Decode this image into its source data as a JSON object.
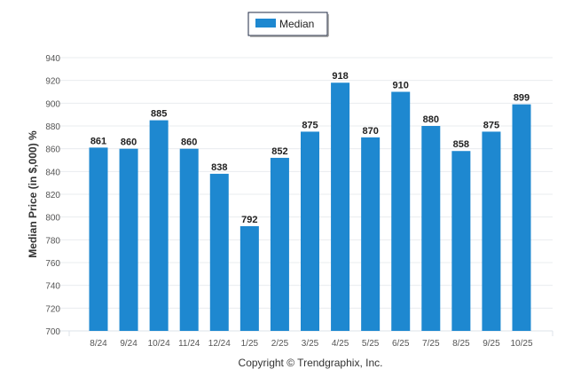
{
  "chart_data": {
    "type": "bar",
    "title": "",
    "xlabel": "",
    "ylabel": "Median Price (in $,000) %",
    "ylim": [
      700,
      940
    ],
    "yticks": [
      700,
      720,
      740,
      760,
      780,
      800,
      820,
      840,
      860,
      880,
      900,
      920,
      940
    ],
    "grid": true,
    "legend": {
      "position": "top-center",
      "entries": [
        "Median"
      ]
    },
    "categories": [
      "8/24",
      "9/24",
      "10/24",
      "11/24",
      "12/24",
      "1/25",
      "2/25",
      "3/25",
      "4/25",
      "5/25",
      "6/25",
      "7/25",
      "8/25",
      "9/25",
      "10/25"
    ],
    "series": [
      {
        "name": "Median",
        "color": "#1e88d0",
        "values": [
          861,
          860,
          885,
          860,
          838,
          792,
          852,
          875,
          918,
          870,
          910,
          880,
          858,
          875,
          899
        ]
      }
    ],
    "footer": "Copyright © Trendgraphix, Inc."
  }
}
